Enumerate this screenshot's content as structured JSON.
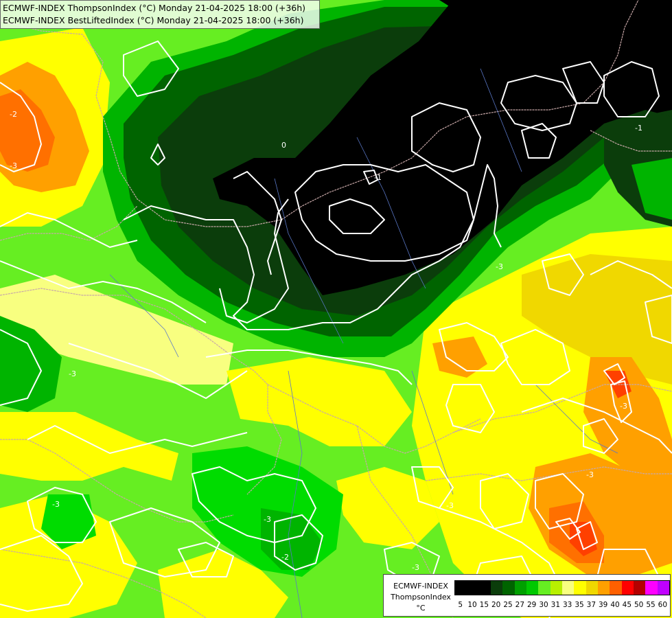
{
  "header": {
    "line1": "ECMWF-INDEX ThompsonIndex (°C) Monday 21-04-2025 18:00 (+36h)",
    "line2": "ECMWF-INDEX BestLiftedIndex (°C) Monday 21-04-2025 18:00 (+36h)"
  },
  "legend": {
    "model": "ECMWF-INDEX",
    "parameter": "ThompsonIndex",
    "unit": "°C",
    "ticks": [
      "5",
      "10",
      "15",
      "20",
      "25",
      "27",
      "29",
      "30",
      "31",
      "33",
      "35",
      "37",
      "39",
      "40",
      "45",
      "50",
      "55",
      "60"
    ],
    "colors": [
      "#000000",
      "#000000",
      "#000000",
      "#0d3a0d",
      "#006400",
      "#00a000",
      "#00c800",
      "#32e632",
      "#a0f000",
      "#d8ff4a",
      "#ffff00",
      "#f0f000",
      "#ffc800",
      "#ff9600",
      "#ff5000",
      "#ff0000",
      "#b40000",
      "#ff00ff",
      "#c000ff",
      "#8000ff",
      "#2020ff",
      "#0000ff"
    ]
  },
  "contour_labels": [
    "-2",
    "-3",
    "0",
    "-1",
    "-3",
    "-3",
    "-3",
    "-3",
    "-2",
    "-3",
    "-3",
    "-3",
    "-3",
    "-1"
  ],
  "palette": {
    "black": "#000000",
    "dark_green": "#0b3d0b",
    "green": "#006400",
    "mid_green": "#00b400",
    "bright_green": "#00dc00",
    "light_green": "#66ee22",
    "yellow_green": "#b8f000",
    "pale_yellow": "#f8ff80",
    "yellow": "#ffff00",
    "gold": "#f0d800",
    "orange": "#ffa000",
    "dark_orange": "#ff7000",
    "red_orange": "#ff4000",
    "contour": "#ffffff",
    "border": "#c8a8a8",
    "river": "#5a78c8"
  }
}
